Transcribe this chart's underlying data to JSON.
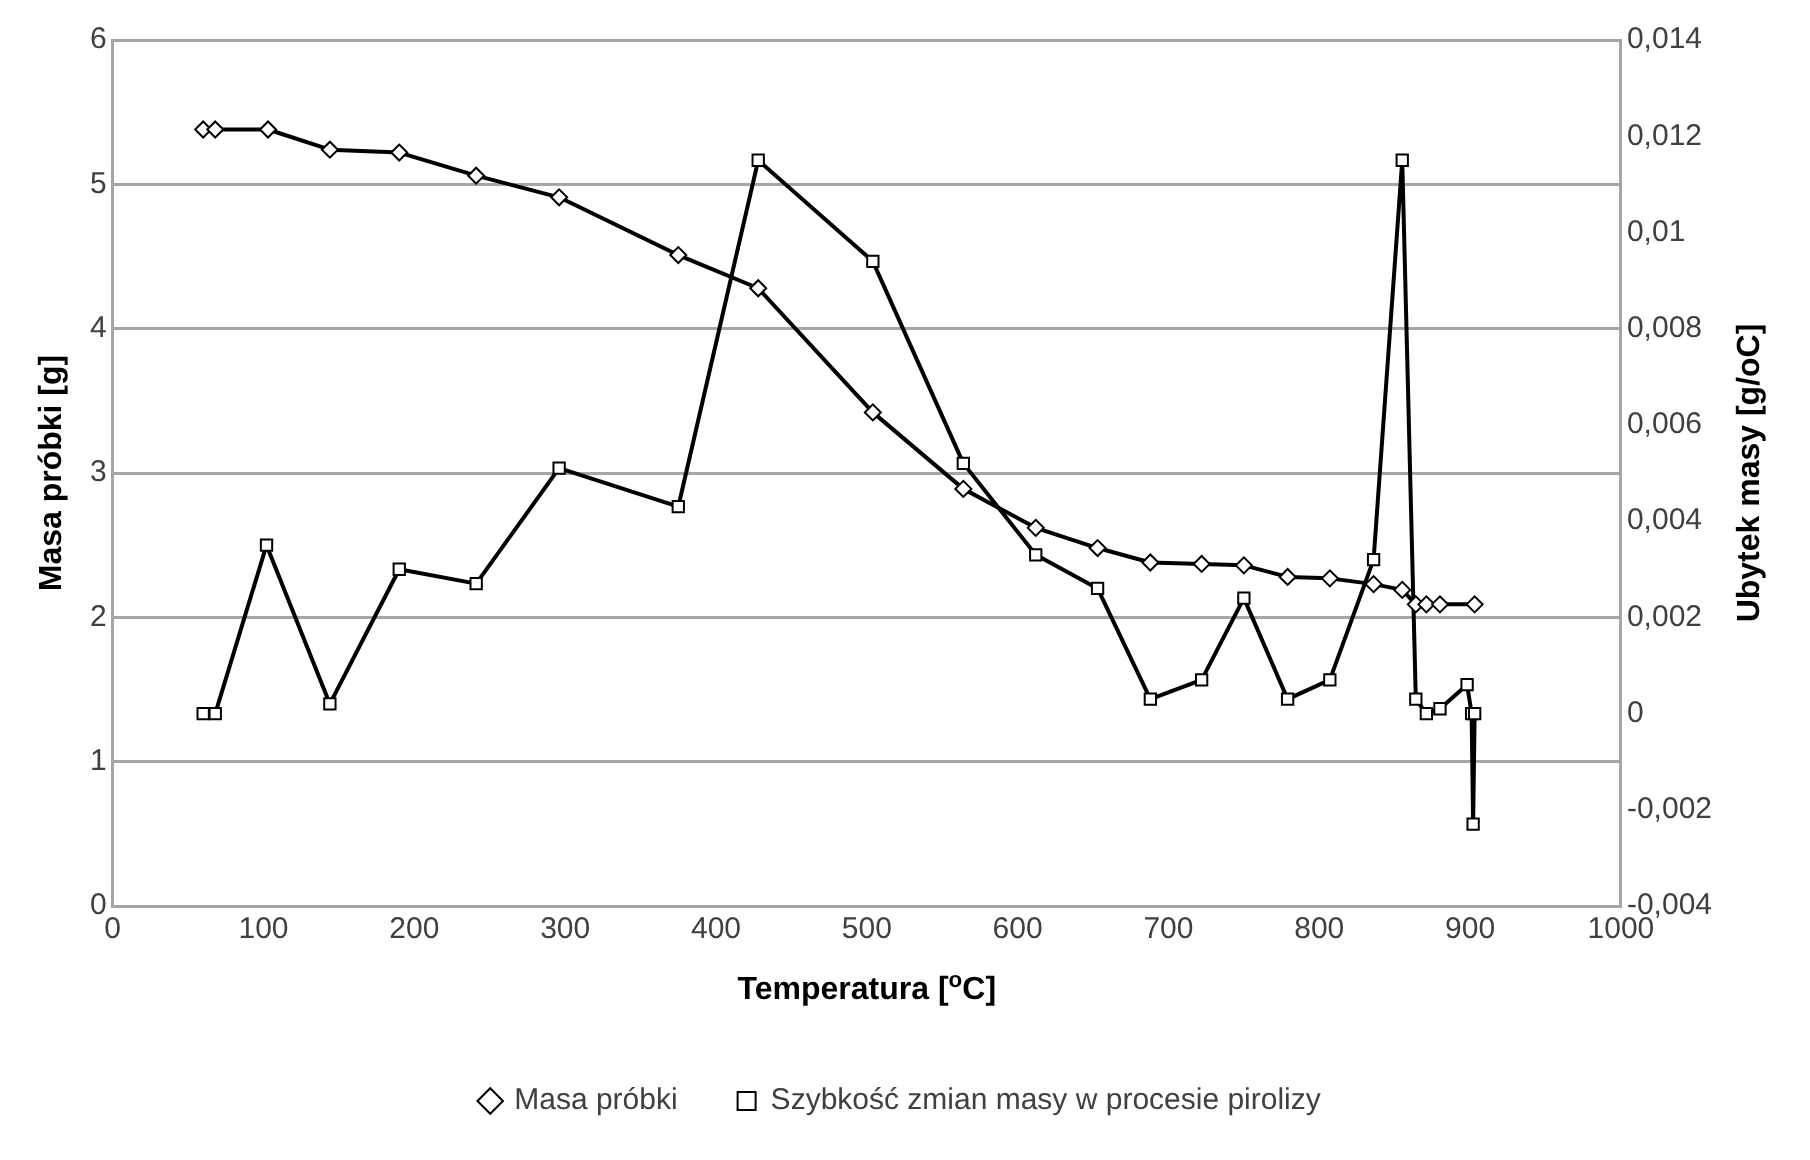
{
  "chart_data": {
    "type": "line",
    "xlabel": "Temperatura [$^{o}$C]",
    "ylabel": "Masa próbki [g]",
    "y2label": "Ubytek masy [g/oC]",
    "xlim": [
      0,
      1000
    ],
    "xticks": [
      0,
      100,
      200,
      300,
      400,
      500,
      600,
      700,
      800,
      900,
      1000
    ],
    "ylim": [
      0,
      6
    ],
    "yticks": [
      0,
      1,
      2,
      3,
      4,
      5,
      6
    ],
    "y2lim": [
      -0.004,
      0.014
    ],
    "y2ticks": [
      {
        "value": -0.004,
        "label": "-0,004"
      },
      {
        "value": -0.002,
        "label": "-0,002"
      },
      {
        "value": 0,
        "label": "0"
      },
      {
        "value": 0.002,
        "label": "0,002"
      },
      {
        "value": 0.004,
        "label": "0,004"
      },
      {
        "value": 0.006,
        "label": "0,006"
      },
      {
        "value": 0.008,
        "label": "0,008"
      },
      {
        "value": 0.01,
        "label": "0,01"
      },
      {
        "value": 0.012,
        "label": "0,012"
      },
      {
        "value": 0.014,
        "label": "0,014"
      }
    ],
    "grid": "y",
    "legend": "bottom",
    "line_style": "solid",
    "series": [
      {
        "name": "Masa próbki",
        "color": "#000000",
        "marker": "diamond",
        "x": [
          60,
          68,
          103,
          144,
          190,
          241,
          296,
          375,
          428,
          504,
          564,
          612,
          653,
          688,
          722,
          750,
          779,
          807,
          836,
          855,
          864,
          871,
          880,
          901,
          903
        ],
        "values": [
          5.38,
          5.38,
          5.38,
          5.24,
          5.22,
          5.06,
          4.91,
          4.51,
          4.28,
          3.42,
          2.89,
          2.62,
          2.48,
          2.38,
          2.37,
          2.36,
          2.28,
          2.27,
          2.23,
          2.19,
          2.09,
          2.09,
          2.09,
          null,
          2.09
        ]
      },
      {
        "name": "Szybkość zmian masy w procesie pirolizy",
        "color": "#000000",
        "marker": "square",
        "axis": "y2",
        "x": [
          60,
          68,
          102,
          144,
          190,
          241,
          296,
          375,
          428,
          504,
          564,
          612,
          653,
          688,
          722,
          750,
          779,
          807,
          836,
          855,
          864,
          871,
          880,
          898,
          901,
          902,
          903
        ],
        "values": [
          0,
          0,
          0.0035,
          0.0002,
          0.003,
          0.0027,
          0.0051,
          0.0043,
          0.0115,
          0.0094,
          0.0052,
          0.0033,
          0.0026,
          0.0003,
          0.0007,
          0.0024,
          0.0003,
          0.0007,
          0.0032,
          0.0115,
          0.0003,
          0,
          0.0001,
          0.0006,
          0,
          -0.0023,
          0
        ]
      }
    ]
  }
}
